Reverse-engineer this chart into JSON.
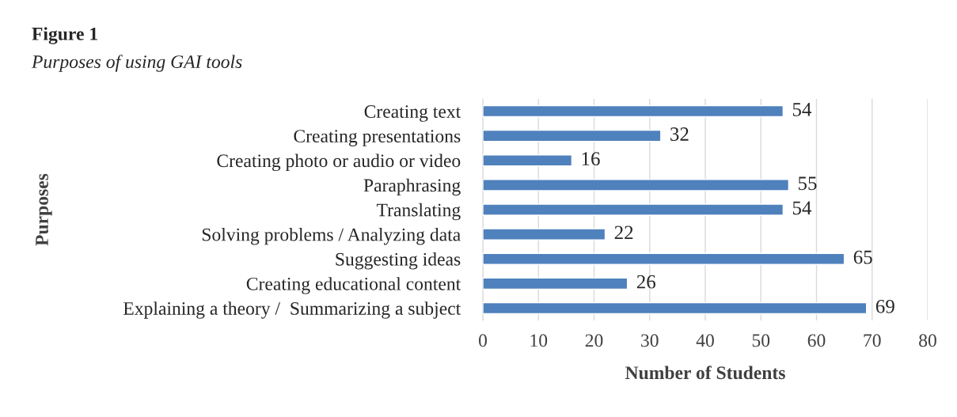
{
  "chart_data": {
    "type": "bar",
    "orientation": "horizontal",
    "title": "Figure 1",
    "subtitle": "Purposes of using GAI tools",
    "xlabel": "Number of Students",
    "ylabel": "Purposes",
    "categories": [
      "Creating text",
      "Creating presentations",
      "Creating photo or audio or video",
      "Paraphrasing",
      "Translating",
      "Solving problems / Analyzing data",
      "Suggesting ideas",
      "Creating educational content",
      "Explaining a theory /  Summarizing a subject"
    ],
    "values": [
      54,
      32,
      16,
      55,
      54,
      22,
      65,
      26,
      69
    ],
    "color": "#4f81bd",
    "xlim": [
      0,
      80
    ],
    "xticks": [
      0,
      10,
      20,
      30,
      40,
      50,
      60,
      70,
      80
    ],
    "grid": "x",
    "data_labels": true
  }
}
